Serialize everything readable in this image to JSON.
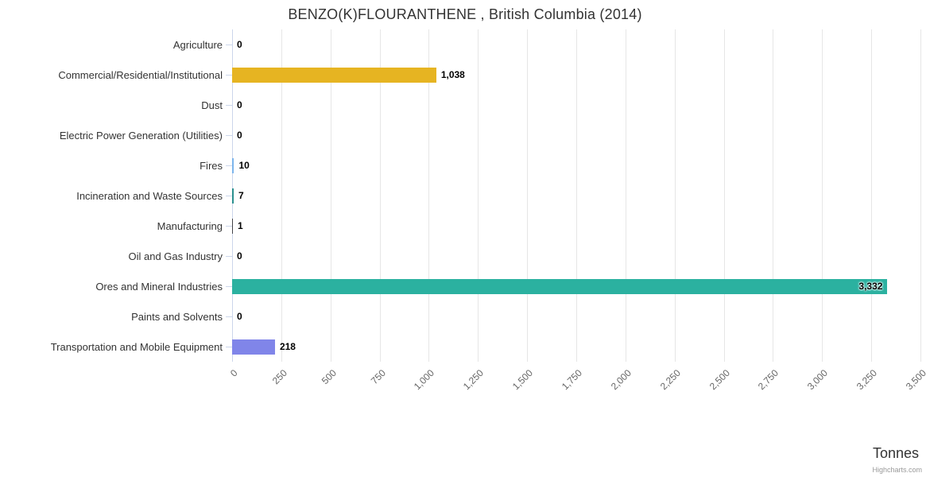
{
  "chart_data": {
    "type": "bar",
    "title": "BENZO(K)FLOURANTHENE , British Columbia (2014)",
    "xlabel": "Tonnes",
    "credits": "Highcharts.com",
    "categories": [
      "Agriculture",
      "Commercial/Residential/Institutional",
      "Dust",
      "Electric Power Generation (Utilities)",
      "Fires",
      "Incineration and Waste Sources",
      "Manufacturing",
      "Oil and Gas Industry",
      "Ores and Mineral Industries",
      "Paints and Solvents",
      "Transportation and Mobile Equipment"
    ],
    "values": [
      0,
      1038,
      0,
      0,
      10,
      7,
      1,
      0,
      3332,
      0,
      218
    ],
    "value_labels": [
      "0",
      "1,038",
      "0",
      "0",
      "10",
      "7",
      "1",
      "0",
      "3,332",
      "0",
      "218"
    ],
    "colors": [
      "#7cb5ec",
      "#e6b422",
      "#90ed7d",
      "#f7a35c",
      "#7cb5ec",
      "#2b908f",
      "#434348",
      "#f15c80",
      "#2bb1a0",
      "#91e8e1",
      "#8085e9"
    ],
    "xlim": [
      0,
      3500
    ],
    "tick_step": 250,
    "tick_labels": [
      "0",
      "250",
      "500",
      "750",
      "1,000",
      "1,250",
      "1,500",
      "1,750",
      "2,000",
      "2,250",
      "2,500",
      "2,750",
      "3,000",
      "3,250",
      "3,500"
    ],
    "label_inside_index": 8,
    "grid_color": "#e6e6e6",
    "axis_line_color": "#ccd6eb",
    "legend": "off"
  }
}
